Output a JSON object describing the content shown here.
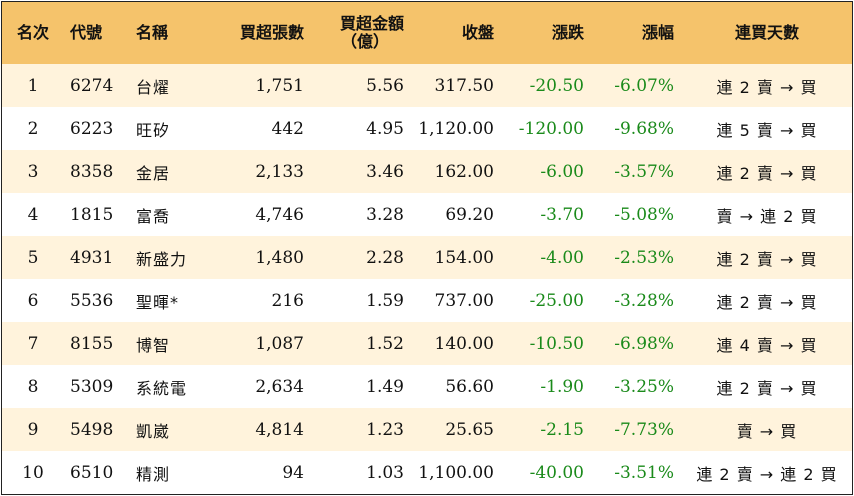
{
  "headers": {
    "rank": "名次",
    "code": "代號",
    "name": "名稱",
    "net_buy_lots": "買超張數",
    "net_buy_amount_line1": "買超金額",
    "net_buy_amount_line2": "（億）",
    "close": "收盤",
    "change": "漲跌",
    "change_pct": "漲幅",
    "streak": "連買天數"
  },
  "rows": [
    {
      "rank": "1",
      "code": "6274",
      "name": "台燿",
      "lots": "1,751",
      "amount": "5.56",
      "close": "317.50",
      "change": "-20.50",
      "pct": "-6.07%",
      "streak": "連 2 賣 → 買"
    },
    {
      "rank": "2",
      "code": "6223",
      "name": "旺矽",
      "lots": "442",
      "amount": "4.95",
      "close": "1,120.00",
      "change": "-120.00",
      "pct": "-9.68%",
      "streak": "連 5 賣 → 買"
    },
    {
      "rank": "3",
      "code": "8358",
      "name": "金居",
      "lots": "2,133",
      "amount": "3.46",
      "close": "162.00",
      "change": "-6.00",
      "pct": "-3.57%",
      "streak": "連 2 賣 → 買"
    },
    {
      "rank": "4",
      "code": "1815",
      "name": "富喬",
      "lots": "4,746",
      "amount": "3.28",
      "close": "69.20",
      "change": "-3.70",
      "pct": "-5.08%",
      "streak": "賣 → 連 2 買"
    },
    {
      "rank": "5",
      "code": "4931",
      "name": "新盛力",
      "lots": "1,480",
      "amount": "2.28",
      "close": "154.00",
      "change": "-4.00",
      "pct": "-2.53%",
      "streak": "連 2 賣 → 買"
    },
    {
      "rank": "6",
      "code": "5536",
      "name": "聖暉*",
      "lots": "216",
      "amount": "1.59",
      "close": "737.00",
      "change": "-25.00",
      "pct": "-3.28%",
      "streak": "連 2 賣 → 買"
    },
    {
      "rank": "7",
      "code": "8155",
      "name": "博智",
      "lots": "1,087",
      "amount": "1.52",
      "close": "140.00",
      "change": "-10.50",
      "pct": "-6.98%",
      "streak": "連 4 賣 → 買"
    },
    {
      "rank": "8",
      "code": "5309",
      "name": "系統電",
      "lots": "2,634",
      "amount": "1.49",
      "close": "56.60",
      "change": "-1.90",
      "pct": "-3.25%",
      "streak": "連 2 賣 → 買"
    },
    {
      "rank": "9",
      "code": "5498",
      "name": "凱崴",
      "lots": "4,814",
      "amount": "1.23",
      "close": "25.65",
      "change": "-2.15",
      "pct": "-7.73%",
      "streak": "賣 → 買"
    },
    {
      "rank": "10",
      "code": "6510",
      "name": "精測",
      "lots": "94",
      "amount": "1.03",
      "close": "1,100.00",
      "change": "-40.00",
      "pct": "-3.51%",
      "streak": "連 2 賣 → 連 2 買"
    }
  ],
  "colors": {
    "header_bg": "#f5c36b",
    "row_alt_bg": "#fff3dc",
    "negative": "#1a8a1a"
  }
}
